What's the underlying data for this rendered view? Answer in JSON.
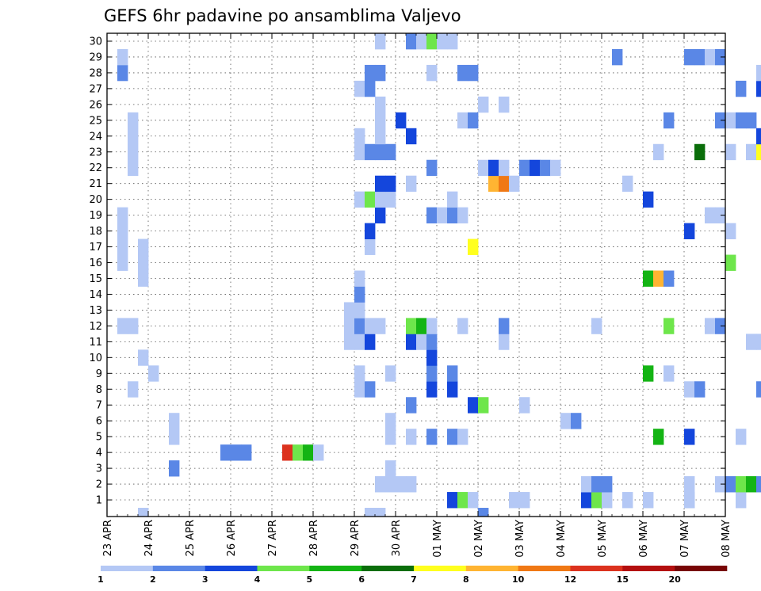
{
  "title": "GEFS 6hr padavine po ansamblima Valjevo",
  "chart_data": {
    "type": "heatmap",
    "title": "GEFS 6hr padavine po ansamblima Valjevo",
    "xlabel": "",
    "ylabel": "",
    "x_ticks": [
      "23 APR",
      "24 APR",
      "25 APR",
      "26 APR",
      "27 APR",
      "28 APR",
      "29 APR",
      "30 APR",
      "01 MAY",
      "02 MAY",
      "03 MAY",
      "04 MAY",
      "05 MAY",
      "06 MAY",
      "07 MAY",
      "08 MAY"
    ],
    "y_ticks": [
      "1",
      "2",
      "3",
      "4",
      "5",
      "6",
      "7",
      "8",
      "9",
      "10",
      "11",
      "12",
      "13",
      "14",
      "15",
      "16",
      "17",
      "18",
      "19",
      "20",
      "21",
      "22",
      "23",
      "24",
      "25",
      "26",
      "27",
      "28",
      "29",
      "30"
    ],
    "x_range": [
      "23 APR 00:00",
      "08 MAY 00:00"
    ],
    "time_step_hours": 6,
    "ensemble_members": 30,
    "grid": true,
    "colorbar": {
      "levels": [
        "1",
        "2",
        "3",
        "4",
        "5",
        "6",
        "7",
        "8",
        "10",
        "12",
        "15",
        "20"
      ],
      "colors": [
        "#b4c8f5",
        "#5a87e6",
        "#1446dc",
        "#6ee64b",
        "#14b414",
        "#0a6e0a",
        "#ffff1e",
        "#ffb432",
        "#f07814",
        "#dc321e",
        "#b40f0f",
        "#780505"
      ]
    },
    "cells_legend": "each cell = [member, 6h step index from 23 APR 00Z, colour class 1-12]",
    "cells": [
      [
        1,
        39,
        1
      ],
      [
        1,
        40,
        1
      ],
      [
        1,
        50,
        1
      ],
      [
        1,
        52,
        1
      ],
      [
        1,
        56,
        1
      ],
      [
        1,
        61,
        1
      ],
      [
        1,
        64,
        1
      ],
      [
        1,
        66,
        1
      ],
      [
        1,
        72,
        1
      ],
      [
        1,
        79,
        1
      ],
      [
        1,
        89,
        1
      ],
      [
        1,
        90,
        1
      ],
      [
        1,
        91,
        1
      ],
      [
        1,
        92,
        2
      ],
      [
        1,
        93,
        2
      ],
      [
        1,
        94,
        8
      ],
      [
        1,
        46,
        3
      ],
      [
        1,
        47,
        4
      ],
      [
        1,
        48,
        1
      ],
      [
        1,
        33,
        3
      ],
      [
        1,
        34,
        4
      ],
      [
        1,
        35,
        1
      ],
      [
        1,
        56,
        1
      ],
      [
        2,
        26,
        1
      ],
      [
        2,
        27,
        1
      ],
      [
        2,
        28,
        1
      ],
      [
        2,
        29,
        1
      ],
      [
        2,
        46,
        1
      ],
      [
        2,
        47,
        2
      ],
      [
        2,
        48,
        2
      ],
      [
        2,
        56,
        1
      ],
      [
        2,
        59,
        1
      ],
      [
        2,
        60,
        2
      ],
      [
        2,
        61,
        4
      ],
      [
        2,
        62,
        5
      ],
      [
        2,
        63,
        2
      ],
      [
        2,
        64,
        1
      ],
      [
        2,
        90,
        2
      ],
      [
        2,
        91,
        1
      ],
      [
        2,
        92,
        1
      ],
      [
        2,
        119,
        1
      ],
      [
        3,
        6,
        2
      ],
      [
        3,
        27,
        1
      ],
      [
        4,
        11,
        2
      ],
      [
        4,
        12,
        2
      ],
      [
        4,
        13,
        2
      ],
      [
        4,
        17,
        10
      ],
      [
        4,
        18,
        4
      ],
      [
        4,
        19,
        5
      ],
      [
        4,
        20,
        1
      ],
      [
        4,
        67,
        9
      ],
      [
        4,
        90,
        2
      ],
      [
        4,
        91,
        9
      ],
      [
        4,
        92,
        10
      ],
      [
        4,
        93,
        1
      ],
      [
        4,
        94,
        2
      ],
      [
        4,
        102,
        1
      ],
      [
        5,
        6,
        1
      ],
      [
        5,
        27,
        1
      ],
      [
        5,
        29,
        1
      ],
      [
        5,
        31,
        2
      ],
      [
        5,
        33,
        2
      ],
      [
        5,
        34,
        1
      ],
      [
        5,
        53,
        5
      ],
      [
        5,
        56,
        3
      ],
      [
        5,
        61,
        1
      ],
      [
        5,
        64,
        4
      ],
      [
        5,
        65,
        3
      ],
      [
        5,
        66,
        3
      ],
      [
        5,
        71,
        6
      ],
      [
        5,
        72,
        5
      ],
      [
        5,
        74,
        1
      ],
      [
        5,
        76,
        6
      ],
      [
        5,
        77,
        8
      ],
      [
        5,
        80,
        1
      ],
      [
        5,
        82,
        1
      ],
      [
        5,
        85,
        6
      ],
      [
        5,
        86,
        7
      ],
      [
        5,
        87,
        5
      ],
      [
        5,
        88,
        1
      ],
      [
        5,
        96,
        1
      ],
      [
        5,
        97,
        1
      ],
      [
        6,
        6,
        1
      ],
      [
        6,
        27,
        1
      ],
      [
        6,
        44,
        1
      ],
      [
        6,
        45,
        2
      ],
      [
        6,
        74,
        4
      ],
      [
        6,
        80,
        1
      ],
      [
        6,
        100,
        1
      ],
      [
        6,
        101,
        1
      ],
      [
        6,
        102,
        1
      ],
      [
        7,
        29,
        2
      ],
      [
        7,
        35,
        3
      ],
      [
        7,
        36,
        4
      ],
      [
        7,
        40,
        1
      ],
      [
        7,
        72,
        1
      ],
      [
        7,
        75,
        1
      ],
      [
        7,
        90,
        3
      ],
      [
        7,
        92,
        7
      ],
      [
        7,
        100,
        1
      ],
      [
        8,
        2,
        1
      ],
      [
        8,
        24,
        1
      ],
      [
        8,
        25,
        2
      ],
      [
        8,
        31,
        3
      ],
      [
        8,
        33,
        3
      ],
      [
        8,
        56,
        1
      ],
      [
        8,
        57,
        2
      ],
      [
        8,
        63,
        2
      ],
      [
        8,
        80,
        2
      ],
      [
        8,
        89,
        1
      ],
      [
        8,
        100,
        1
      ],
      [
        9,
        4,
        1
      ],
      [
        9,
        24,
        1
      ],
      [
        9,
        27,
        1
      ],
      [
        9,
        31,
        2
      ],
      [
        9,
        33,
        2
      ],
      [
        9,
        52,
        5
      ],
      [
        9,
        54,
        1
      ],
      [
        9,
        65,
        2
      ],
      [
        9,
        66,
        2
      ],
      [
        9,
        67,
        2
      ],
      [
        9,
        69,
        4
      ],
      [
        9,
        70,
        1
      ],
      [
        9,
        79,
        1
      ],
      [
        9,
        103,
        7
      ],
      [
        9,
        104,
        9
      ],
      [
        10,
        3,
        1
      ],
      [
        10,
        31,
        3
      ],
      [
        10,
        88,
        1
      ],
      [
        10,
        89,
        2
      ],
      [
        11,
        23,
        1
      ],
      [
        11,
        24,
        1
      ],
      [
        11,
        25,
        3
      ],
      [
        11,
        29,
        3
      ],
      [
        11,
        30,
        1
      ],
      [
        11,
        31,
        2
      ],
      [
        11,
        38,
        1
      ],
      [
        11,
        62,
        1
      ],
      [
        11,
        63,
        1
      ],
      [
        11,
        64,
        2
      ],
      [
        11,
        68,
        1
      ],
      [
        11,
        69,
        2
      ],
      [
        11,
        70,
        1
      ],
      [
        11,
        71,
        1
      ],
      [
        11,
        88,
        1
      ],
      [
        11,
        103,
        1
      ],
      [
        12,
        1,
        1
      ],
      [
        12,
        2,
        1
      ],
      [
        12,
        23,
        1
      ],
      [
        12,
        24,
        2
      ],
      [
        12,
        25,
        1
      ],
      [
        12,
        26,
        1
      ],
      [
        12,
        29,
        4
      ],
      [
        12,
        30,
        5
      ],
      [
        12,
        31,
        1
      ],
      [
        12,
        34,
        1
      ],
      [
        12,
        38,
        2
      ],
      [
        12,
        47,
        1
      ],
      [
        12,
        54,
        4
      ],
      [
        12,
        58,
        1
      ],
      [
        12,
        59,
        2
      ],
      [
        12,
        64,
        2
      ],
      [
        12,
        91,
        4
      ],
      [
        12,
        92,
        1
      ],
      [
        13,
        23,
        1
      ],
      [
        13,
        24,
        1
      ],
      [
        13,
        64,
        2
      ],
      [
        13,
        78,
        1
      ],
      [
        13,
        80,
        1
      ],
      [
        13,
        82,
        1
      ],
      [
        13,
        83,
        3
      ],
      [
        13,
        84,
        2
      ],
      [
        14,
        24,
        2
      ],
      [
        14,
        81,
        2
      ],
      [
        14,
        80,
        1
      ],
      [
        14,
        85,
        1
      ],
      [
        15,
        3,
        1
      ],
      [
        15,
        24,
        1
      ],
      [
        15,
        52,
        5
      ],
      [
        15,
        53,
        8
      ],
      [
        15,
        54,
        2
      ],
      [
        15,
        76,
        1
      ],
      [
        15,
        77,
        1
      ],
      [
        15,
        78,
        1
      ],
      [
        15,
        79,
        1
      ],
      [
        16,
        1,
        1
      ],
      [
        16,
        3,
        1
      ],
      [
        16,
        60,
        4
      ],
      [
        16,
        65,
        1
      ],
      [
        16,
        90,
        2
      ],
      [
        16,
        91,
        2
      ],
      [
        16,
        92,
        3
      ],
      [
        16,
        93,
        5
      ],
      [
        16,
        94,
        1
      ],
      [
        17,
        1,
        1
      ],
      [
        17,
        3,
        1
      ],
      [
        17,
        25,
        1
      ],
      [
        17,
        35,
        7
      ],
      [
        17,
        71,
        6
      ],
      [
        17,
        72,
        5
      ],
      [
        17,
        90,
        2
      ],
      [
        17,
        91,
        2
      ],
      [
        17,
        93,
        2
      ],
      [
        17,
        94,
        1
      ],
      [
        18,
        1,
        1
      ],
      [
        18,
        25,
        3
      ],
      [
        18,
        56,
        3
      ],
      [
        18,
        60,
        1
      ],
      [
        18,
        72,
        5
      ],
      [
        18,
        91,
        1
      ],
      [
        18,
        92,
        1
      ],
      [
        18,
        102,
        3
      ],
      [
        18,
        103,
        3
      ],
      [
        19,
        1,
        1
      ],
      [
        19,
        26,
        3
      ],
      [
        19,
        31,
        2
      ],
      [
        19,
        32,
        1
      ],
      [
        19,
        33,
        2
      ],
      [
        19,
        34,
        1
      ],
      [
        19,
        58,
        1
      ],
      [
        19,
        59,
        1
      ],
      [
        19,
        64,
        2
      ],
      [
        19,
        72,
        3
      ],
      [
        19,
        76,
        1
      ],
      [
        20,
        24,
        1
      ],
      [
        20,
        25,
        4
      ],
      [
        20,
        26,
        1
      ],
      [
        20,
        27,
        1
      ],
      [
        20,
        33,
        1
      ],
      [
        20,
        52,
        3
      ],
      [
        20,
        68,
        1
      ],
      [
        20,
        69,
        1
      ],
      [
        20,
        70,
        3
      ],
      [
        20,
        71,
        7
      ],
      [
        20,
        72,
        1
      ],
      [
        20,
        80,
        1
      ],
      [
        20,
        81,
        1
      ],
      [
        20,
        82,
        5
      ],
      [
        21,
        26,
        3
      ],
      [
        21,
        27,
        3
      ],
      [
        21,
        29,
        1
      ],
      [
        21,
        37,
        8
      ],
      [
        21,
        38,
        9
      ],
      [
        21,
        39,
        1
      ],
      [
        21,
        50,
        1
      ],
      [
        21,
        93,
        3
      ],
      [
        21,
        94,
        2
      ],
      [
        22,
        2,
        1
      ],
      [
        22,
        31,
        2
      ],
      [
        22,
        36,
        1
      ],
      [
        22,
        37,
        3
      ],
      [
        22,
        38,
        1
      ],
      [
        22,
        40,
        2
      ],
      [
        22,
        41,
        3
      ],
      [
        22,
        42,
        2
      ],
      [
        22,
        43,
        1
      ],
      [
        22,
        70,
        1
      ],
      [
        22,
        71,
        1
      ],
      [
        22,
        79,
        4
      ],
      [
        23,
        2,
        1
      ],
      [
        23,
        24,
        1
      ],
      [
        23,
        25,
        2
      ],
      [
        23,
        26,
        2
      ],
      [
        23,
        27,
        2
      ],
      [
        23,
        53,
        1
      ],
      [
        23,
        57,
        6
      ],
      [
        23,
        60,
        1
      ],
      [
        23,
        62,
        1
      ],
      [
        23,
        63,
        7
      ],
      [
        23,
        64,
        1
      ],
      [
        23,
        85,
        1
      ],
      [
        23,
        86,
        3
      ],
      [
        23,
        88,
        4
      ],
      [
        23,
        89,
        11
      ],
      [
        23,
        90,
        12
      ],
      [
        23,
        91,
        5
      ],
      [
        24,
        2,
        1
      ],
      [
        24,
        24,
        1
      ],
      [
        24,
        26,
        1
      ],
      [
        24,
        29,
        3
      ],
      [
        24,
        63,
        3
      ],
      [
        24,
        64,
        5
      ],
      [
        25,
        2,
        1
      ],
      [
        25,
        26,
        1
      ],
      [
        25,
        28,
        3
      ],
      [
        25,
        34,
        1
      ],
      [
        25,
        35,
        2
      ],
      [
        25,
        54,
        2
      ],
      [
        25,
        59,
        2
      ],
      [
        25,
        60,
        1
      ],
      [
        25,
        61,
        2
      ],
      [
        25,
        62,
        2
      ],
      [
        25,
        64,
        1
      ],
      [
        25,
        66,
        1
      ],
      [
        25,
        67,
        4
      ],
      [
        25,
        68,
        1
      ],
      [
        25,
        82,
        2
      ],
      [
        25,
        88,
        2
      ],
      [
        25,
        89,
        2
      ],
      [
        26,
        26,
        1
      ],
      [
        26,
        36,
        1
      ],
      [
        26,
        38,
        1
      ],
      [
        26,
        76,
        5
      ],
      [
        26,
        78,
        1
      ],
      [
        26,
        79,
        1
      ],
      [
        26,
        80,
        1
      ],
      [
        26,
        81,
        9
      ],
      [
        26,
        82,
        2
      ],
      [
        26,
        83,
        2
      ],
      [
        27,
        24,
        1
      ],
      [
        27,
        25,
        2
      ],
      [
        27,
        61,
        2
      ],
      [
        27,
        63,
        3
      ],
      [
        27,
        66,
        5
      ],
      [
        27,
        68,
        2
      ],
      [
        27,
        69,
        2
      ],
      [
        27,
        70,
        2
      ],
      [
        27,
        71,
        2
      ],
      [
        27,
        72,
        1
      ],
      [
        27,
        73,
        1
      ],
      [
        27,
        74,
        1
      ],
      [
        27,
        75,
        2
      ],
      [
        27,
        76,
        5
      ],
      [
        27,
        77,
        6
      ],
      [
        27,
        78,
        1
      ],
      [
        27,
        79,
        2
      ],
      [
        27,
        80,
        1
      ],
      [
        27,
        81,
        1
      ],
      [
        28,
        1,
        2
      ],
      [
        28,
        25,
        2
      ],
      [
        28,
        26,
        2
      ],
      [
        28,
        31,
        1
      ],
      [
        28,
        34,
        2
      ],
      [
        28,
        35,
        2
      ],
      [
        28,
        63,
        1
      ],
      [
        28,
        70,
        1
      ],
      [
        28,
        71,
        1
      ],
      [
        28,
        89,
        1
      ],
      [
        28,
        90,
        2
      ],
      [
        28,
        92,
        1
      ],
      [
        29,
        1,
        1
      ],
      [
        29,
        49,
        2
      ],
      [
        29,
        56,
        2
      ],
      [
        29,
        57,
        2
      ],
      [
        29,
        58,
        1
      ],
      [
        29,
        59,
        2
      ],
      [
        29,
        104,
        1
      ],
      [
        30,
        26,
        1
      ],
      [
        30,
        29,
        2
      ],
      [
        30,
        30,
        1
      ],
      [
        30,
        31,
        4
      ],
      [
        30,
        32,
        1
      ],
      [
        30,
        33,
        1
      ],
      [
        30,
        85,
        1
      ],
      [
        30,
        88,
        2
      ],
      [
        30,
        89,
        2
      ]
    ],
    "edge_cells": [
      [
        3,
        1
      ],
      [
        25,
        1
      ],
      [
        26,
        1
      ],
      [
        36,
        2
      ],
      [
        77,
        4
      ],
      [
        78,
        6
      ]
    ]
  }
}
